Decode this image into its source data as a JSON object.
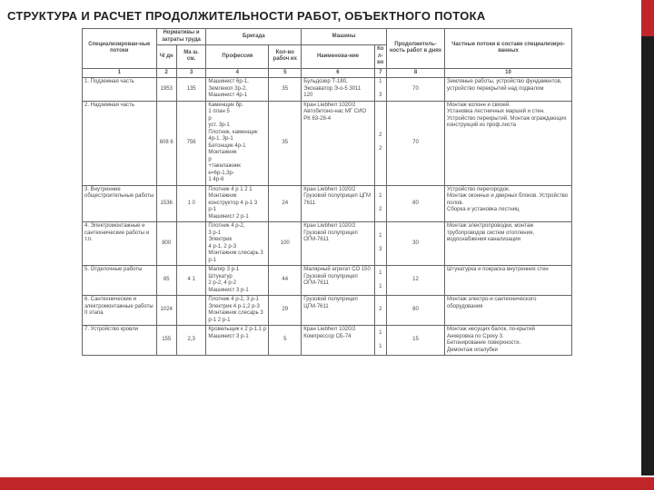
{
  "title": "СТРУКТУРА И РАСЧЕТ ПРОДОЛЖИТЕЛЬНОСТИ РАБОТ, ОБЪЕКТНОГО ПОТОКА",
  "headers": {
    "col1": "Специализирован-ные потоки",
    "groupA": "Нормативы и затраты труда",
    "colA1": "Ч/ дн",
    "colA2": "Ма ш. см.",
    "groupB": "Бригада",
    "colB1": "Профессия",
    "colB2": "Кол-во рабоч их",
    "groupC": "Машины",
    "colC1": "Наименова-ние",
    "colC2": "Ко л-во",
    "col8": "Продолжитель-ность работ в днях",
    "col10": "Частные потоки в составе специализиро-ванных"
  },
  "nums": [
    "1",
    "2",
    "3",
    "4",
    "5",
    "6",
    "7",
    "8",
    "10"
  ],
  "rows": [
    {
      "n": "1. Подземная часть",
      "a1": "1953",
      "a2": "135",
      "b1": "Машинист 6р-1,\nЗемлекоп 3р-2,\nМашинист 4р-1",
      "b2": "35",
      "c1": "Бульдозер Т-180,\nЭкскаватор Э-о-5 3011\n120",
      "c2": "1\n\n3",
      "d": "70",
      "e": "Земляные работы, устройство фундаментов, устройство перекрытий над подвалом"
    },
    {
      "n": "2. Надземная часть",
      "a1": "608 6",
      "a2": "756",
      "b1": "Каменщик бр.\n1 план 5\nр\nуст. 3р-1\nПлотник, каменщик 4р-1. 3р-1\nБетонщик 4р-1\nМонтажник\n р\n+такелажник\nк=6р-1,3р-\n1 4р-6",
      "b2": "35",
      "c1": "Кран Liebherr 1020/2\nАвтобетоно-нас МГ СИО\nРК 63-28-4",
      "c2": "2\n\n2",
      "d": "70",
      "e": "Монтаж колонн и связей.\nУстановка лестничных маршей и стен. Устройство перекрытий. Монтаж ограждающих конструкций из проф.листа"
    },
    {
      "n": "3. Внутренние общестроительные работы",
      "a1": "1536",
      "a2": "1 0",
      "b1": "Плотник 4 р 1 2 1\nМонтажник конструктор 4 р-1 3 р-1\nМашинист 2 р-1",
      "b2": "24",
      "c1": "Кран Liebherr 1020/2\nГрузовой полуприцеп ЦГМ 7611",
      "c2": "1\n\n2",
      "d": "80",
      "e": "Устройство перегородок.\nМонтаж оконных и дверных блоков. Устройство полов.\nСборка и установка лестниц"
    },
    {
      "n": "4. Электромонтажные и сантехнические работы и т.п.",
      "a1": "800",
      "a2": " ",
      "b1": "Плотник 4 р-2,\n3 р-1\nЭлектрик\n4 р-1, 2 р-3\nМонтажник слесарь 3 р-1",
      "b2": "100",
      "c1": "Кран Liebherr 1020/2\nГрузовой полуприцеп ОГМ-7611",
      "c2": "1\n\n3",
      "d": "30",
      "e": "Монтаж электропроводки, монтаж трубопроводов систем отопления, водоснабжения канализации"
    },
    {
      "n": "5. Отделочные работы",
      "a1": "85",
      "a2": "4 1",
      "b1": "Маляр 3 р-1\nШтукатур\n2 р-2, 4 р-2\nМашинист 3 р-1",
      "b2": "44",
      "c1": "Малярный агрегат СО 150 Грузовой полуприцеп ОГМ‑7611",
      "c2": "1\n\n1",
      "d": "12",
      "e": "Штукатурка и покраска внутренних стен"
    },
    {
      "n": "6. Сантехнические и электромонтажные работы II этапа",
      "a1": "1024",
      "a2": " ",
      "b1": "Плотник 4 р-2, 3 р-1\nЭлектрик 4 р-1,2 р-3\nМонтажник слесарь 3 р-1 2 р-1",
      "b2": "29",
      "c1": "Грузовой полуприцеп ЦГМ‑7611",
      "c2": "2",
      "d": "80",
      "e": "Монтаж электро-и сантехнического оборудования"
    },
    {
      "n": "7. Устройство кровли",
      "a1": "155",
      "a2": "2,3",
      "b1": "Кровельщик к 2 р‑1.1 р\nМашинист 3 р-1",
      "b2": "5",
      "c1": "Кран Liebherr 1020/2\nКомпрессор СБ‑74",
      "c2": "1\n\n1",
      "d": "15",
      "e": "Монтаж несущих балок, по-крытий\nАнкеровка по Сроку 3.\nБетонирование поверхности.\n Демонтаж опалубки"
    }
  ]
}
